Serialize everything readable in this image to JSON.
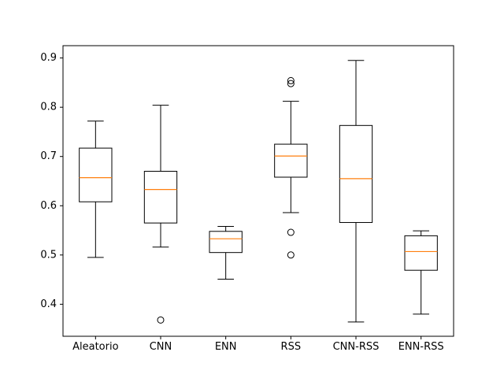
{
  "chart_data": {
    "type": "boxplot",
    "title": "",
    "xlabel": "",
    "ylabel": "",
    "ylim": [
      0.335,
      0.925
    ],
    "yticks": [
      0.4,
      0.5,
      0.6,
      0.7,
      0.8,
      0.9
    ],
    "ytick_labels": [
      "0.4",
      "0.5",
      "0.6",
      "0.7",
      "0.8",
      "0.9"
    ],
    "categories": [
      "Aleatorio",
      "CNN",
      "ENN",
      "RSS",
      "CNN-RSS",
      "ENN-RSS"
    ],
    "boxes": [
      {
        "name": "Aleatorio",
        "whisker_low": 0.495,
        "q1": 0.608,
        "median": 0.657,
        "q3": 0.717,
        "whisker_high": 0.772,
        "outliers": []
      },
      {
        "name": "CNN",
        "whisker_low": 0.516,
        "q1": 0.565,
        "median": 0.633,
        "q3": 0.67,
        "whisker_high": 0.804,
        "outliers": [
          0.368
        ]
      },
      {
        "name": "ENN",
        "whisker_low": 0.451,
        "q1": 0.505,
        "median": 0.533,
        "q3": 0.548,
        "whisker_high": 0.558,
        "outliers": []
      },
      {
        "name": "RSS",
        "whisker_low": 0.586,
        "q1": 0.658,
        "median": 0.701,
        "q3": 0.725,
        "whisker_high": 0.812,
        "outliers": [
          0.5,
          0.546,
          0.848,
          0.854
        ]
      },
      {
        "name": "CNN-RSS",
        "whisker_low": 0.364,
        "q1": 0.566,
        "median": 0.655,
        "q3": 0.763,
        "whisker_high": 0.895,
        "outliers": []
      },
      {
        "name": "ENN-RSS",
        "whisker_low": 0.38,
        "q1": 0.469,
        "median": 0.507,
        "q3": 0.539,
        "whisker_high": 0.549,
        "outliers": []
      }
    ],
    "colors": {
      "box": "#000000",
      "median": "#ff7f0e",
      "background": "#ffffff"
    },
    "grid": false,
    "legend": "none"
  }
}
